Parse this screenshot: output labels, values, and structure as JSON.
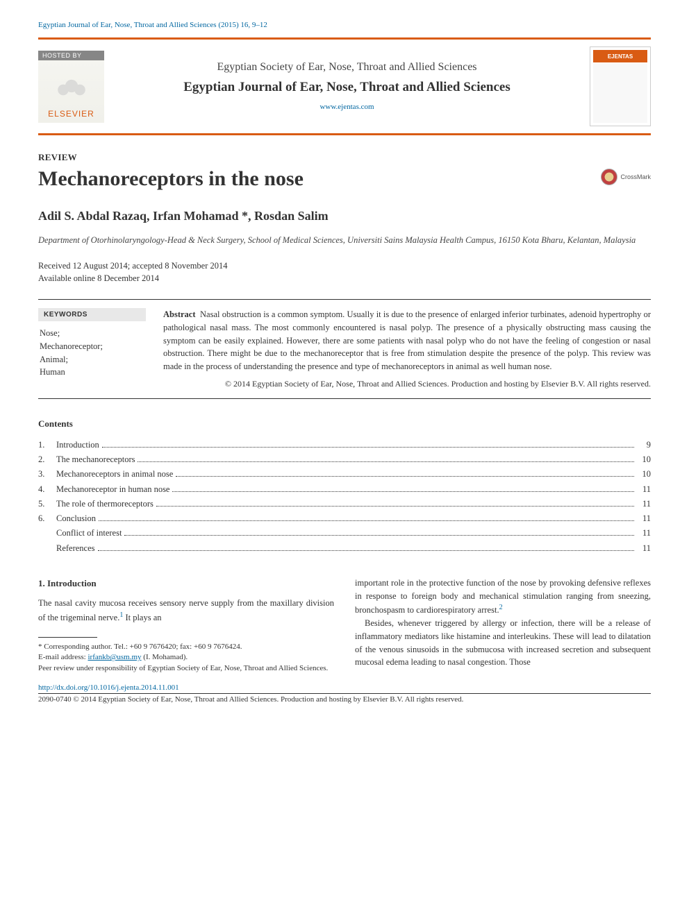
{
  "citation": "Egyptian Journal of Ear, Nose, Throat and Allied Sciences (2015) 16, 9–12",
  "hosted_by": "HOSTED BY",
  "elsevier": "ELSEVIER",
  "society": "Egyptian Society of Ear, Nose, Throat and Allied Sciences",
  "journal": "Egyptian Journal of Ear, Nose, Throat and Allied Sciences",
  "journal_url": "www.ejentas.com",
  "cover_label": "EJENTAS",
  "crossmark": "CrossMark",
  "article_type": "REVIEW",
  "title": "Mechanoreceptors in the nose",
  "authors": "Adil S. Abdal Razaq, Irfan Mohamad *, Rosdan Salim",
  "affiliation": "Department of Otorhinolaryngology-Head & Neck Surgery, School of Medical Sciences, Universiti Sains Malaysia Health Campus, 16150 Kota Bharu, Kelantan, Malaysia",
  "received": "Received 12 August 2014; accepted 8 November 2014",
  "available": "Available online 8 December 2014",
  "keywords_heading": "KEYWORDS",
  "keywords": [
    "Nose;",
    "Mechanoreceptor;",
    "Animal;",
    "Human"
  ],
  "abstract_label": "Abstract",
  "abstract_body": "Nasal obstruction is a common symptom. Usually it is due to the presence of enlarged inferior turbinates, adenoid hypertrophy or pathological nasal mass. The most commonly encountered is nasal polyp. The presence of a physically obstructing mass causing the symptom can be easily explained. However, there are some patients with nasal polyp who do not have the feeling of congestion or nasal obstruction. There might be due to the mechanoreceptor that is free from stimulation despite the presence of the polyp. This review was made in the process of understanding the presence and type of mechanoreceptors in animal as well human nose.",
  "abstract_copyright": "© 2014 Egyptian Society of Ear, Nose, Throat and Allied Sciences. Production and hosting by Elsevier B.V. All rights reserved.",
  "contents_label": "Contents",
  "toc": [
    {
      "num": "1.",
      "label": "Introduction",
      "page": "9"
    },
    {
      "num": "2.",
      "label": "The mechanoreceptors",
      "page": "10"
    },
    {
      "num": "3.",
      "label": "Mechanoreceptors in animal nose",
      "page": "10"
    },
    {
      "num": "4.",
      "label": "Mechanoreceptor in human nose",
      "page": "11"
    },
    {
      "num": "5.",
      "label": "The role of thermoreceptors",
      "page": "11"
    },
    {
      "num": "6.",
      "label": "Conclusion",
      "page": "11"
    },
    {
      "num": "",
      "label": "Conflict of interest",
      "page": "11",
      "indent": true
    },
    {
      "num": "",
      "label": "References",
      "page": "11",
      "indent": true
    }
  ],
  "intro_heading": "1. Introduction",
  "intro_p1a": "The nasal cavity mucosa receives sensory nerve supply from the maxillary division of the trigeminal nerve.",
  "intro_p1b": " It plays an ",
  "col2_p1a": "important role in the protective function of the nose by provoking defensive reflexes in response to foreign body and mechanical stimulation ranging from sneezing, bronchospasm to cardiorespiratory arrest.",
  "col2_p2": "Besides, whenever triggered by allergy or infection, there will be a release of inflammatory mediators like histamine and interleukins. These will lead to dilatation of the venous sinusoids in the submucosa with increased secretion and subsequent mucosal edema leading to nasal congestion. Those",
  "corresponding": "* Corresponding author. Tel.: +60 9 7676420; fax: +60 9 7676424.",
  "email_label": "E-mail address: ",
  "email": "irfankb@usm.my",
  "email_suffix": " (I. Mohamad).",
  "peer_review": "Peer review under responsibility of Egyptian Society of Ear, Nose, Throat and Allied Sciences.",
  "doi": "http://dx.doi.org/10.1016/j.ejenta.2014.11.001",
  "issn_line": "2090-0740 © 2014 Egyptian Society of Ear, Nose, Throat and Allied Sciences. Production and hosting by Elsevier B.V. All rights reserved.",
  "ref1": "1",
  "ref2": "2"
}
